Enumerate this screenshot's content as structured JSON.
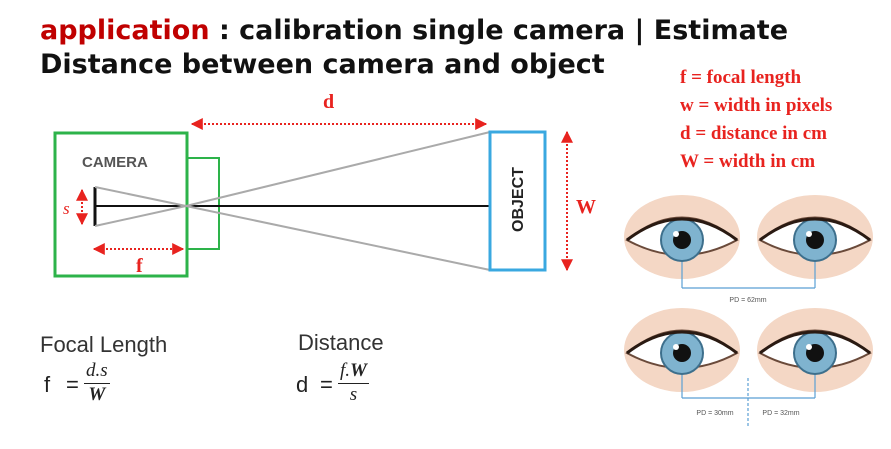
{
  "title": {
    "app": "application",
    "rest_line1": " : calibration single camera | Estimate",
    "line2": "Distance between camera and object"
  },
  "diagram": {
    "camera_label": "CAMERA",
    "object_label": "OBJECT",
    "d_label": "d",
    "f_label": "f",
    "s_label": "s",
    "W_label": "W"
  },
  "legend": [
    "f = focal length",
    "w = width in pixels",
    "d = distance in cm",
    "W = width in cm"
  ],
  "formulas": {
    "focal": {
      "label": "Focal Length",
      "lhs": "f",
      "eq": "=",
      "num": "d.s",
      "den": "W"
    },
    "distance": {
      "label": "Distance",
      "lhs": "d",
      "eq": "=",
      "num_f": "f.",
      "num_W": "W",
      "den": "s"
    }
  },
  "eyes": {
    "pd_top": "PD = 62mm",
    "pd_left": "PD = 30mm",
    "pd_right": "PD = 32mm"
  },
  "colors": {
    "accent_red": "#e8231f",
    "camera_green": "#2db34a",
    "object_blue": "#3aa8e0",
    "arrow_red": "#e8231f"
  }
}
